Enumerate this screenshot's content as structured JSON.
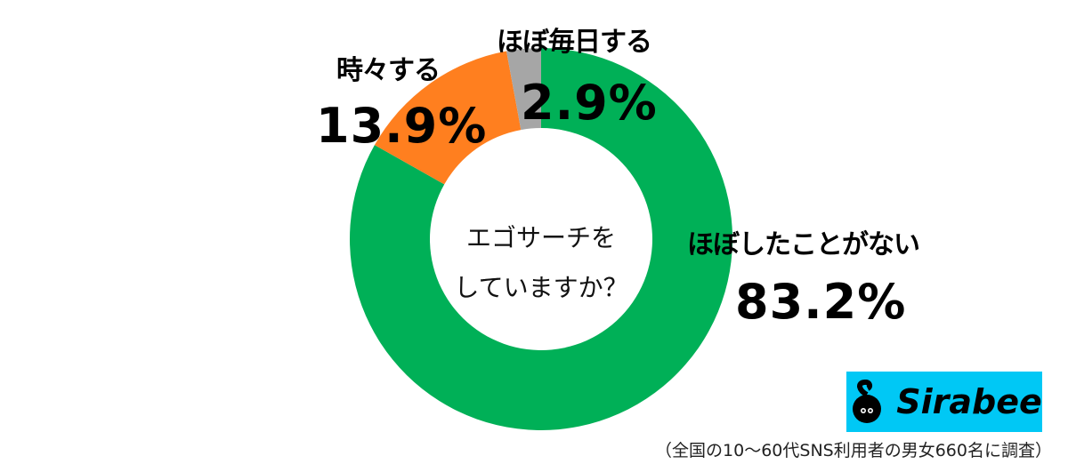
{
  "chart_data": {
    "type": "pie",
    "donut": true,
    "title": "エゴサーチをしていますか？",
    "categories": [
      "ほぼしたことがない",
      "時々する",
      "ほぼ毎日する"
    ],
    "values": [
      83.2,
      13.9,
      2.9
    ],
    "colors": [
      "#00b057",
      "#ff7f1f",
      "#a6a6a6"
    ],
    "labels": [
      "83.2%",
      "13.9%",
      "2.9%"
    ],
    "start_angle_deg": 0,
    "direction": "clockwise",
    "legend": "none"
  },
  "center": {
    "line1": "エゴサーチを",
    "line2": "していますか？"
  },
  "labels": {
    "never": {
      "category": "ほぼしたことがない",
      "pct": "83.2%"
    },
    "sometimes": {
      "category": "時々する",
      "pct": "13.9%"
    },
    "daily": {
      "category": "ほぼ毎日する",
      "pct": "2.9%"
    }
  },
  "brand": {
    "name": "Sirabee",
    "color": "#00c8f5"
  },
  "footnote": "（全国の10〜60代SNS利用者の男女660名に調査）"
}
